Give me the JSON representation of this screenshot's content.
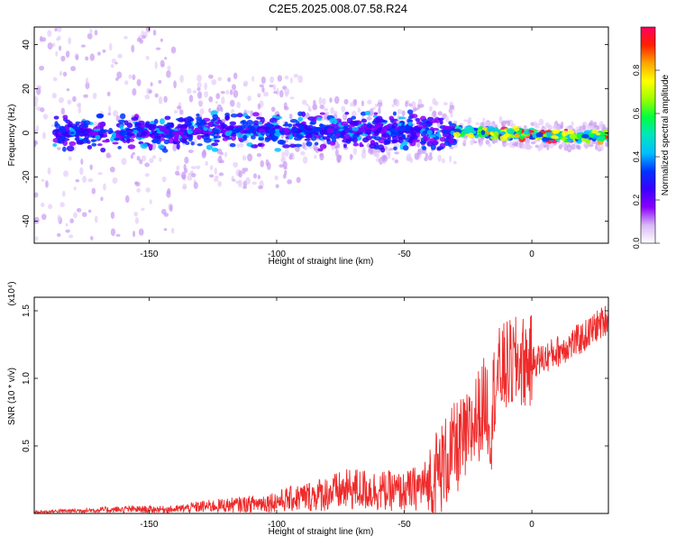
{
  "title": "C2E5.2025.008.07.58.R24",
  "chart_data": [
    {
      "type": "heatmap",
      "xlabel": "Height of straight line (km)",
      "ylabel": "Frequency (Hz)",
      "xlim": [
        -195,
        30
      ],
      "ylim": [
        -50,
        48
      ],
      "xticks": [
        -150,
        -100,
        -50,
        0
      ],
      "yticks": [
        -40,
        -20,
        0,
        20,
        40
      ],
      "grid": false,
      "colorbar": {
        "label": "Normalized spectral amplitude",
        "range": [
          0.0,
          1.0
        ],
        "ticks": [
          "0.0",
          "0.2",
          "0.4",
          "0.6",
          "0.8"
        ],
        "colormap": [
          "#ffffff",
          "#d9b8f5",
          "#8a00ff",
          "#3a00ff",
          "#0033ff",
          "#00bfff",
          "#00e5c0",
          "#00ff40",
          "#9dff00",
          "#ffff00",
          "#ffa500",
          "#ff2000",
          "#ff0060"
        ]
      },
      "ridge": [
        {
          "x": -190,
          "y": 0
        },
        {
          "x": -150,
          "y": 0
        },
        {
          "x": -100,
          "y": 1
        },
        {
          "x": -50,
          "y": 1
        },
        {
          "x": -30,
          "y": 0.5
        },
        {
          "x": -10,
          "y": 0
        },
        {
          "x": 0,
          "y": -1
        },
        {
          "x": 15,
          "y": -1.5
        },
        {
          "x": 30,
          "y": -1.5
        }
      ]
    },
    {
      "type": "line",
      "xlabel": "Height of straight line (km)",
      "ylabel": "SNR (10 * v/v)",
      "yscale_label": "(x10⁴)",
      "xlim": [
        -195,
        30
      ],
      "ylim": [
        0,
        1.6
      ],
      "xticks": [
        -150,
        -100,
        -50,
        0
      ],
      "yticks": [
        0.5,
        1.0,
        1.5
      ],
      "ytick_labels": [
        "0.5",
        "1.0",
        "1.5"
      ],
      "grid": false,
      "color": "#ee2b2b",
      "series": [
        {
          "x": [
            -195,
            -180,
            -160,
            -140,
            -130,
            -120,
            -110,
            -100,
            -90,
            -80,
            -70,
            -60,
            -50,
            -40,
            -35,
            -30,
            -25,
            -22,
            -20,
            -18,
            -16,
            -15,
            -14,
            -12,
            -10,
            -5,
            0,
            5,
            10,
            15,
            20,
            25,
            30
          ],
          "values": [
            0.01,
            0.02,
            0.03,
            0.03,
            0.05,
            0.06,
            0.07,
            0.09,
            0.12,
            0.15,
            0.18,
            0.17,
            0.16,
            0.22,
            0.35,
            0.48,
            0.55,
            0.7,
            0.75,
            0.85,
            0.62,
            0.9,
            1.0,
            1.05,
            1.08,
            1.12,
            1.12,
            1.15,
            1.2,
            1.25,
            1.3,
            1.38,
            1.45
          ]
        }
      ]
    }
  ]
}
